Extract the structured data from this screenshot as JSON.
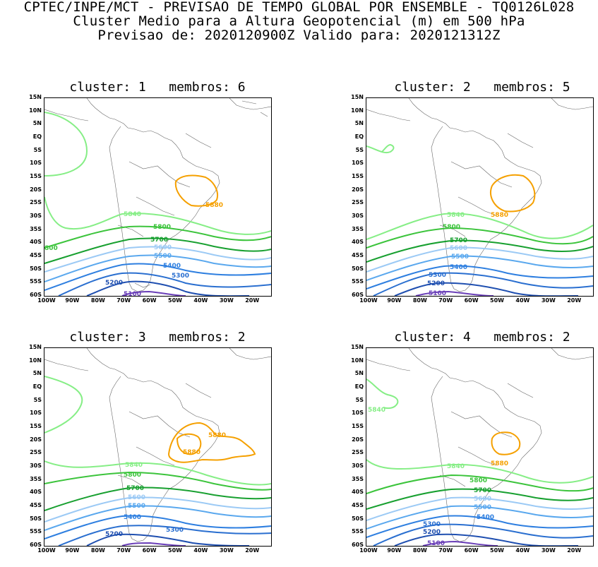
{
  "header": {
    "line1": "CPTEC/INPE/MCT - PREVISAO DE TEMPO GLOBAL POR ENSEMBLE - TQ0126L028",
    "line2": "Cluster Medio para a Altura Geopotencial (m) em 500 hPa",
    "line3": "Previsao de: 2020120900Z    Valido para: 2020121312Z"
  },
  "axes": {
    "lat_labels": [
      "15N",
      "10N",
      "5N",
      "EQ",
      "5S",
      "10S",
      "15S",
      "20S",
      "25S",
      "30S",
      "35S",
      "40S",
      "45S",
      "50S",
      "55S",
      "60S"
    ],
    "lon_labels": [
      "100W",
      "90W",
      "80W",
      "70W",
      "60W",
      "50W",
      "40W",
      "30W",
      "20W"
    ]
  },
  "colors": {
    "c5100": "#6a3fb8",
    "c5200": "#1f4fb0",
    "c5300": "#2a6fd0",
    "c5400": "#2e7fe0",
    "c5500": "#5aa8ee",
    "c5600": "#9ccaf5",
    "c5700": "#18a030",
    "c5800": "#3cc43c",
    "c5840": "#86ee86",
    "c5880": "#f5a000",
    "coast": "#555555"
  },
  "panels": [
    {
      "title": "cluster: 1   membros: 6",
      "labels": {
        "l5100": "5100",
        "l5200": "5200",
        "l5300": "5300",
        "l5400": "5400",
        "l5500": "5500",
        "l5600": "5600",
        "l5700": "5700",
        "l5800": "5800",
        "l5840": "5840",
        "l5880": "5880",
        "l5800b": "800"
      }
    },
    {
      "title": "cluster: 2   membros: 5",
      "labels": {
        "l5100": "5100",
        "l5200": "5200",
        "l5300": "5300",
        "l5400": "5400",
        "l5500": "5500",
        "l5600": "5600",
        "l5700": "5700",
        "l5800": "5800",
        "l5840": "5840",
        "l5880": "5880"
      }
    },
    {
      "title": "cluster: 3   membros: 2",
      "labels": {
        "l5200": "5200",
        "l5300": "5300",
        "l5400": "5400",
        "l5500": "5500",
        "l5600": "5600",
        "l5700": "5700",
        "l5800": "5800",
        "l5840": "5840",
        "l5880a": "5880",
        "l5880b": "5880"
      }
    },
    {
      "title": "cluster: 4   membros: 2",
      "labels": {
        "l5100": "5100",
        "l5200": "5200",
        "l5300": "5300",
        "l5400": "5400",
        "l5500": "5500",
        "l5600": "5600",
        "l5700": "5700",
        "l5800": "5800",
        "l5840a": "5840",
        "l5840b": "5840",
        "l5880": "5880"
      }
    }
  ]
}
